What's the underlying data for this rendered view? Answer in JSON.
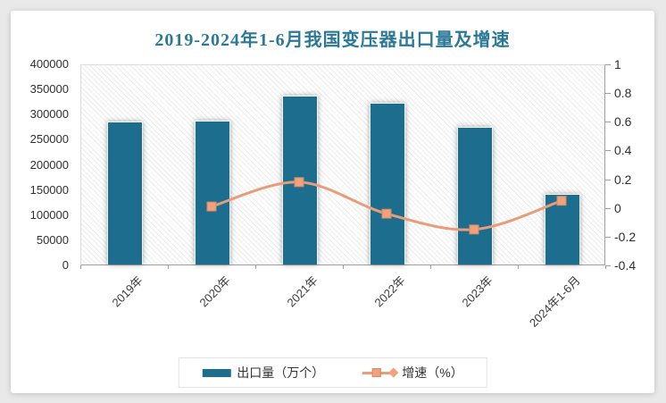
{
  "window": {
    "background": "#e9e9e9",
    "card_background": "#ffffff"
  },
  "chart_data": {
    "type": "bar-line-combo",
    "title": "2019-2024年1-6月我国变压器出口量及增速",
    "title_color": "#2b7997",
    "categories": [
      "2019年",
      "2020年",
      "2021年",
      "2022年",
      "2023年",
      "2024年1-6月"
    ],
    "series": [
      {
        "name": "出口量（万个）",
        "type": "bar",
        "axis": "left",
        "color": "#1d6e8e",
        "values": [
          285000,
          287000,
          336000,
          322000,
          274000,
          140000
        ]
      },
      {
        "name": "增速（%）",
        "type": "line",
        "axis": "right",
        "color": "#e59d7b",
        "marker": "square",
        "marker_fill": "#efa27c",
        "marker_stroke": "#d58a62",
        "values": [
          null,
          0.01,
          0.18,
          -0.04,
          -0.15,
          0.05
        ]
      }
    ],
    "left_axis": {
      "min": 0,
      "max": 400000,
      "tick_labels": [
        "400000",
        "350000",
        "300000",
        "250000",
        "200000",
        "150000",
        "100000",
        "50000",
        "0"
      ]
    },
    "right_axis": {
      "min": -0.4,
      "max": 1,
      "tick_labels": [
        "1",
        "0.8",
        "0.6",
        "0.4",
        "0.2",
        "0",
        "-0.2",
        "-0.4"
      ]
    },
    "legend": {
      "position": "bottom",
      "items": [
        "出口量（万个）",
        "增速（%）"
      ]
    },
    "plot_background": "diagonal-hatch",
    "grid": false
  }
}
